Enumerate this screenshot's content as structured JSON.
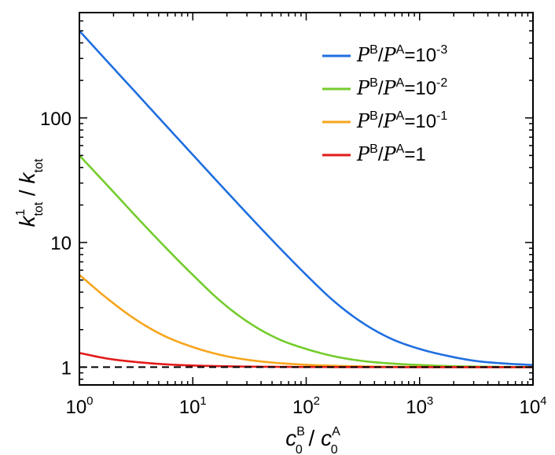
{
  "chart_data": {
    "type": "line",
    "xscale": "log",
    "yscale": "log",
    "xlim": [
      1,
      10000
    ],
    "ylim": [
      0.72,
      700
    ],
    "xticks": [
      {
        "value": 1,
        "base": "10",
        "exp": "0"
      },
      {
        "value": 10,
        "base": "10",
        "exp": "1"
      },
      {
        "value": 100,
        "base": "10",
        "exp": "2"
      },
      {
        "value": 1000,
        "base": "10",
        "exp": "3"
      },
      {
        "value": 10000,
        "base": "10",
        "exp": "4"
      }
    ],
    "yticks": [
      {
        "value": 1,
        "label": "1"
      },
      {
        "value": 10,
        "label": "10"
      },
      {
        "value": 100,
        "label": "100"
      }
    ],
    "xlabel": {
      "var1": "c",
      "sub1": "0",
      "sup1": "B",
      "sep": " / ",
      "var2": "c",
      "sub2": "0",
      "sup2": "A"
    },
    "ylabel": {
      "var1": "k",
      "sub1": "tot",
      "sup1": "1",
      "sep": " / ",
      "var2": "k",
      "sub2": "tot"
    },
    "x": [
      1,
      1.78,
      3.16,
      5.62,
      10,
      17.8,
      31.6,
      56.2,
      100,
      178,
      316,
      562,
      1000,
      1780,
      3160,
      5620,
      10000
    ],
    "series": [
      {
        "name": "P^B/P^A=10^-3",
        "num": "B",
        "den": "A",
        "rhs": "=10",
        "exp": "-3",
        "color": "#1f6fe0",
        "values": [
          500,
          281,
          159,
          89.6,
          50.6,
          28.6,
          16.3,
          9.38,
          5.5,
          3.35,
          2.26,
          1.69,
          1.4,
          1.23,
          1.12,
          1.07,
          1.04
        ]
      },
      {
        "name": "P^B/P^A=10^-2",
        "num": "B",
        "den": "A",
        "rhs": "=10",
        "exp": "-2",
        "color": "#74cc2c",
        "values": [
          50,
          28.5,
          16.2,
          9.33,
          5.5,
          3.35,
          2.26,
          1.69,
          1.4,
          1.22,
          1.12,
          1.07,
          1.04,
          1.02,
          1.01,
          1.005,
          1.003
        ]
      },
      {
        "name": "P^B/P^A=10^-1",
        "num": "B",
        "den": "A",
        "rhs": "=10",
        "exp": "-1",
        "color": "#f7a51c",
        "values": [
          5.5,
          3.53,
          2.4,
          1.78,
          1.45,
          1.25,
          1.14,
          1.08,
          1.045,
          1.025,
          1.014,
          1.008,
          1.0045,
          1.0025,
          1.0014,
          1.0008,
          1.0004
        ]
      },
      {
        "name": "P^B/P^A=1",
        "num": "B",
        "den": "A",
        "rhs": "=1",
        "exp": "",
        "color": "#e21a1a",
        "values": [
          1.3,
          1.17,
          1.1,
          1.055,
          1.031,
          1.018,
          1.01,
          1.006,
          1.003,
          1.002,
          1.001,
          1.0005,
          1.0003,
          1.0002,
          1.0001,
          1.0001,
          1.0
        ]
      }
    ],
    "reference_line": {
      "y": 1,
      "style": "dashed",
      "color": "#000000"
    },
    "legend_position": "top-right",
    "grid": false
  }
}
